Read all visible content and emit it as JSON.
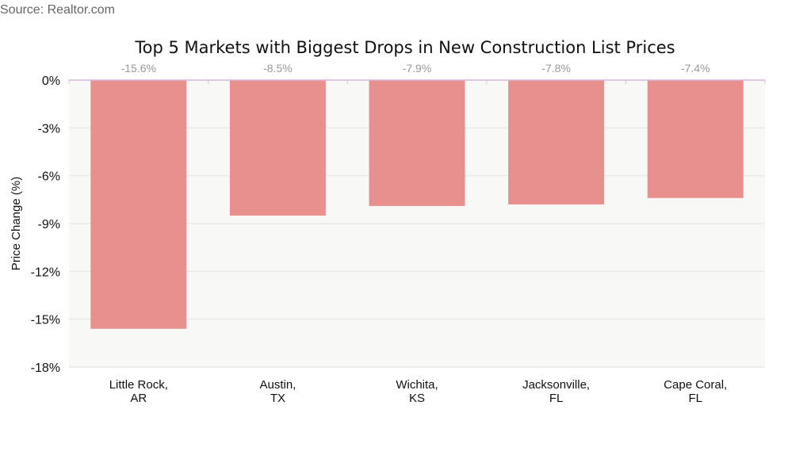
{
  "source": "Source: Realtor.com",
  "chart_data": {
    "type": "bar",
    "title": "Top 5 Markets with Biggest Drops in New Construction List Prices",
    "xlabel": "",
    "ylabel": "Price Change (%)",
    "categories": [
      [
        "Little Rock,",
        "AR"
      ],
      [
        "Austin,",
        "TX"
      ],
      [
        "Wichita,",
        "KS"
      ],
      [
        "Jacksonville,",
        "FL"
      ],
      [
        "Cape Coral,",
        "FL"
      ]
    ],
    "values": [
      -15.6,
      -8.5,
      -7.9,
      -7.8,
      -7.4
    ],
    "data_labels": [
      "-15.6%",
      "-8.5%",
      "-7.9%",
      "-7.8%",
      "-7.4%"
    ],
    "ylim": [
      -18,
      0
    ],
    "yticks": [
      0,
      -3,
      -6,
      -9,
      -12,
      -15,
      -18
    ],
    "ytick_labels": [
      "0%",
      "-3%",
      "-6%",
      "-9%",
      "-12%",
      "-15%",
      "-18%"
    ],
    "grid": true,
    "legend": "none",
    "colors": {
      "bar": "#e8908e",
      "plot_bg": "#f8f8f6",
      "grid": "#e9e9e7",
      "zero_line": "#d8b4d8",
      "data_label": "#999999"
    }
  }
}
